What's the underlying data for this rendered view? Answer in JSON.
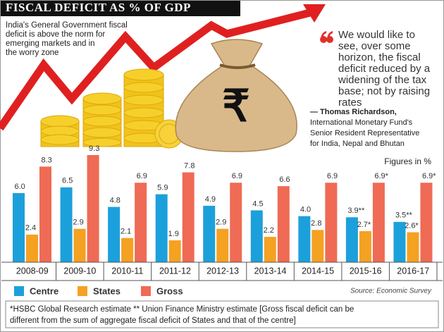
{
  "chart_data": {
    "type": "bar",
    "title": "FISCAL DEFICIT AS % OF GDP",
    "units_note": "Figures in %",
    "source": "Source: Economic Survey",
    "categories": [
      "2008-09",
      "2009-10",
      "2010-11",
      "2011-12",
      "2012-13",
      "2013-14",
      "2014-15",
      "2015-16",
      "2016-17"
    ],
    "series": [
      {
        "name": "Centre",
        "color": "#1ca0dc",
        "values": [
          6.0,
          6.5,
          4.8,
          5.9,
          4.9,
          4.5,
          4.0,
          3.9,
          3.5
        ],
        "value_labels": [
          "6.0",
          "6.5",
          "4.8",
          "5.9",
          "4.9",
          "4.5",
          "4.0",
          "3.9**",
          "3.5**"
        ]
      },
      {
        "name": "States",
        "color": "#f5a122",
        "values": [
          2.4,
          2.9,
          2.1,
          1.9,
          2.9,
          2.2,
          2.8,
          2.7,
          2.6
        ],
        "value_labels": [
          "2.4",
          "2.9",
          "2.1",
          "1.9",
          "2.9",
          "2.2",
          "2.8",
          "2.7*",
          "2.6*"
        ]
      },
      {
        "name": "Gross",
        "color": "#ef6b55",
        "values": [
          8.3,
          9.3,
          6.9,
          7.8,
          6.9,
          6.6,
          6.9,
          6.9,
          6.9
        ],
        "value_labels": [
          "8.3",
          "9.3",
          "6.9",
          "7.8",
          "6.9",
          "6.6",
          "6.9",
          "6.9*",
          "6.9*"
        ]
      }
    ]
  },
  "bag_symbol": "₹",
  "intro_lines": [
    "India's General Government fiscal",
    "deficit is above the norm for",
    "emerging markets and in",
    "the worry zone"
  ],
  "quote_lines": [
    "We would like to",
    "see, over some",
    "horizon, the fiscal",
    "deficit reduced by a",
    "widening of the tax",
    "base; not by raising",
    "rates"
  ],
  "attribution_lines": [
    "— Thomas Richardson,",
    "International Monetary Fund's",
    "Senior Resident Representative",
    "for India, Nepal and Bhutan"
  ],
  "footnote_lines": [
    "*HSBC Global Research estimate ** Union Finance Ministry estimate [Gross fiscal deficit can be",
    "different from the sum of aggregate fiscal deficit of States and that of the centre]"
  ]
}
